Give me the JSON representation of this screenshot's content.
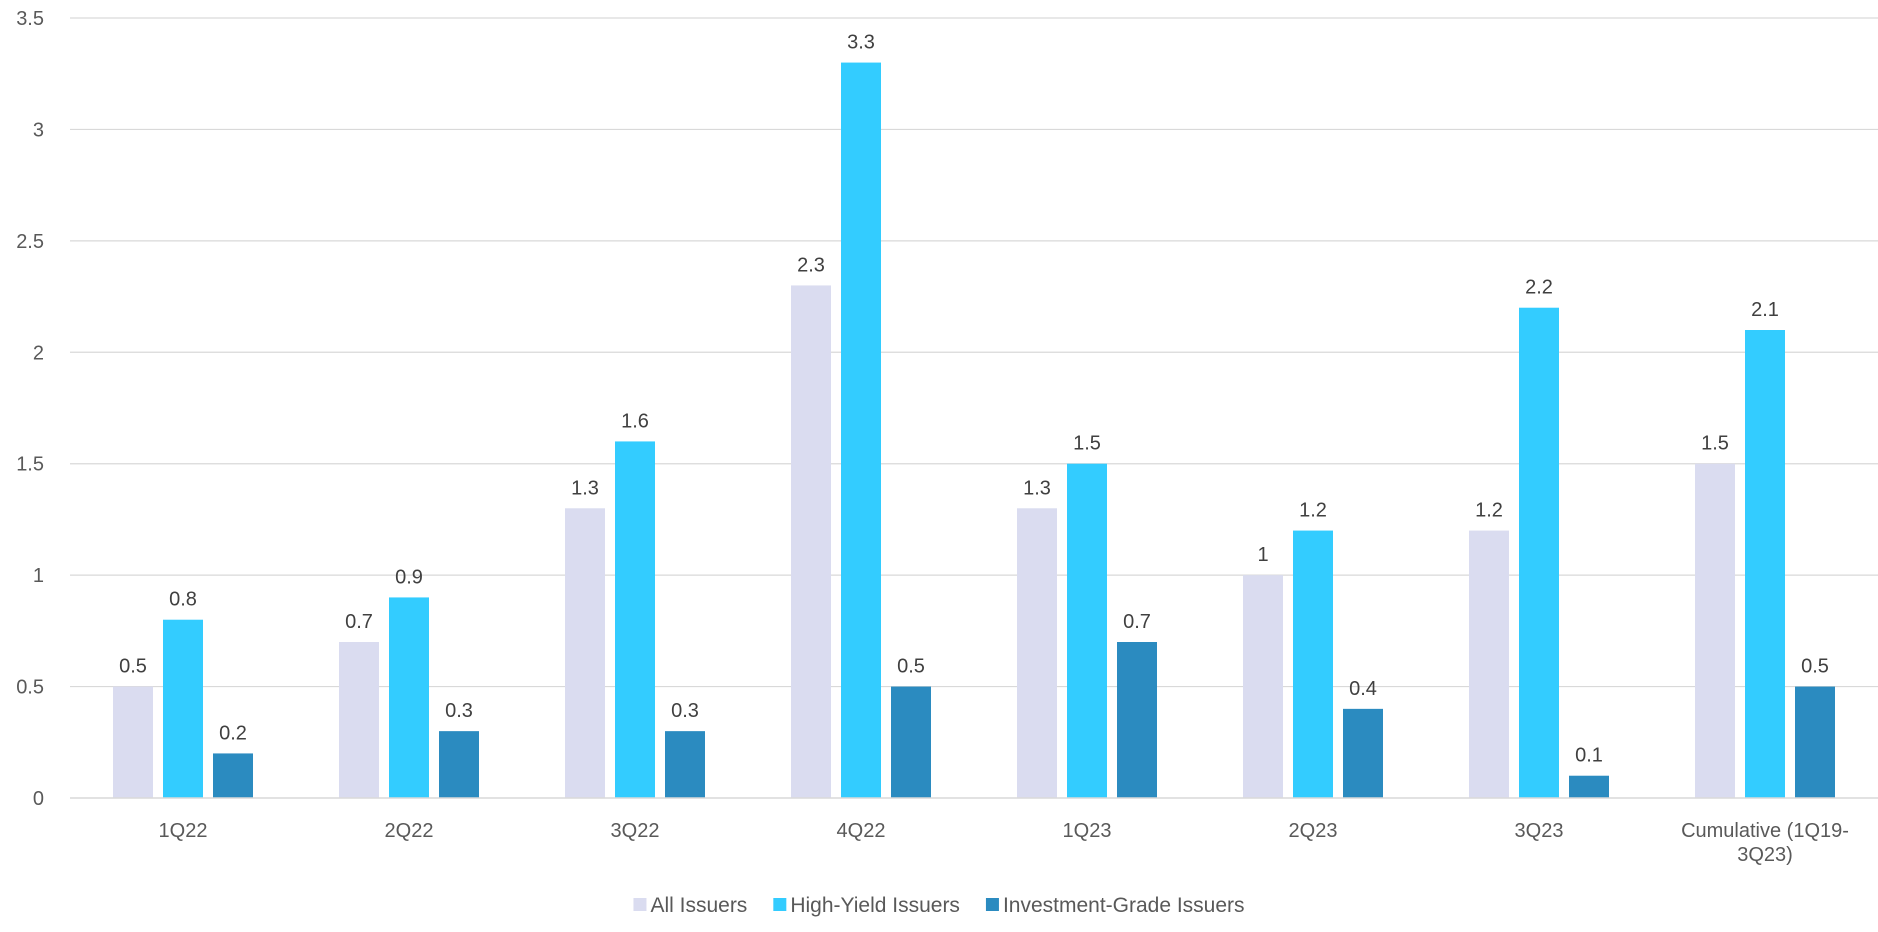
{
  "chart_data": {
    "type": "bar",
    "title": "",
    "xlabel": "",
    "ylabel": "",
    "categories": [
      [
        "1Q22"
      ],
      [
        "2Q22"
      ],
      [
        "3Q22"
      ],
      [
        "4Q22"
      ],
      [
        "1Q23"
      ],
      [
        "2Q23"
      ],
      [
        "3Q23"
      ],
      [
        "Cumulative (1Q19-",
        "3Q23)"
      ]
    ],
    "series": [
      {
        "name": "All Issuers",
        "color": "#dadcf0",
        "values": [
          0.5,
          0.7,
          1.3,
          2.3,
          1.3,
          1,
          1.2,
          1.5
        ]
      },
      {
        "name": "High-Yield Issuers",
        "color": "#33ccff",
        "values": [
          0.8,
          0.9,
          1.6,
          3.3,
          1.5,
          1.2,
          2.2,
          2.1
        ]
      },
      {
        "name": "Investment-Grade Issuers",
        "color": "#2b8bc0",
        "values": [
          0.2,
          0.3,
          0.3,
          0.5,
          0.7,
          0.4,
          0.1,
          0.5
        ]
      }
    ],
    "yticks": [
      "0",
      "0.5",
      "1",
      "1.5",
      "2",
      "2.5",
      "3",
      "3.5"
    ],
    "ylim": [
      0,
      3.5
    ],
    "grid": true,
    "legend": "bottom-center",
    "data_labels": true
  }
}
